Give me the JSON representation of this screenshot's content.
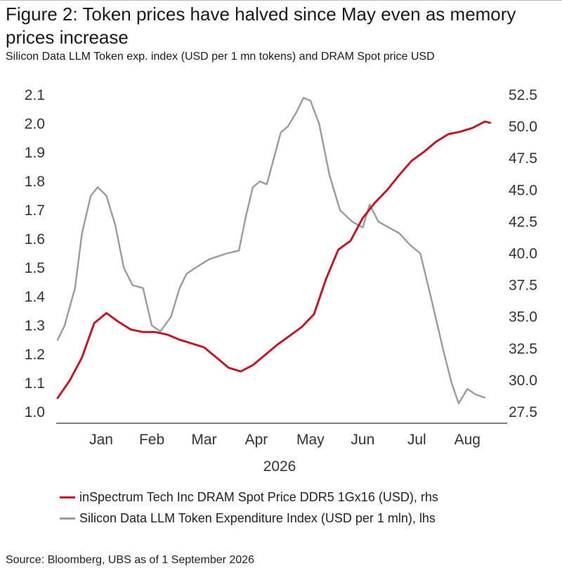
{
  "title": "Figure 2: Token prices have halved since May even as memory prices increase",
  "subtitle": "Silicon Data LLM Token exp. index (USD per 1 mn tokens) and DRAM Spot price USD",
  "source": "Source: Bloomberg, UBS as of 1 September 2026",
  "chart_data": {
    "type": "line",
    "xlabel": "2026",
    "x_ticks": [
      "Jan",
      "Feb",
      "Mar",
      "Apr",
      "May",
      "Jun",
      "Jul",
      "Aug"
    ],
    "y_left": {
      "ylim": [
        1.0,
        2.1
      ],
      "ticks": [
        "1.0",
        "1.1",
        "1.2",
        "1.3",
        "1.4",
        "1.5",
        "1.6",
        "1.7",
        "1.8",
        "1.9",
        "2.0",
        "2.1"
      ]
    },
    "y_right": {
      "ylim": [
        27.5,
        52.5
      ],
      "ticks": [
        "27.5",
        "30.0",
        "32.5",
        "35.0",
        "37.5",
        "40.0",
        "42.5",
        "45.0",
        "47.5",
        "50.0",
        "52.5"
      ]
    },
    "legend_position": "bottom",
    "grid": false,
    "series": [
      {
        "name": "inSpectrum Tech Inc DRAM Spot Price DDR5 1Gx16 (USD), rhs",
        "axis": "right",
        "color": "#b71c2c",
        "points": [
          [
            "2025-12-22",
            28.6
          ],
          [
            "2025-12-29",
            30.0
          ],
          [
            "2026-01-05",
            31.8
          ],
          [
            "2026-01-12",
            34.5
          ],
          [
            "2026-01-19",
            35.3
          ],
          [
            "2026-01-26",
            34.6
          ],
          [
            "2026-02-02",
            34.0
          ],
          [
            "2026-02-09",
            33.8
          ],
          [
            "2026-02-16",
            33.8
          ],
          [
            "2026-02-23",
            33.6
          ],
          [
            "2026-03-02",
            33.2
          ],
          [
            "2026-03-09",
            32.9
          ],
          [
            "2026-03-16",
            32.6
          ],
          [
            "2026-03-23",
            31.8
          ],
          [
            "2026-03-30",
            31.0
          ],
          [
            "2026-04-06",
            30.7
          ],
          [
            "2026-04-13",
            31.2
          ],
          [
            "2026-04-20",
            32.0
          ],
          [
            "2026-04-27",
            32.8
          ],
          [
            "2026-05-04",
            33.5
          ],
          [
            "2026-05-11",
            34.2
          ],
          [
            "2026-05-18",
            35.2
          ],
          [
            "2026-05-25",
            38.0
          ],
          [
            "2026-06-01",
            40.3
          ],
          [
            "2026-06-08",
            41.0
          ],
          [
            "2026-06-15",
            42.8
          ],
          [
            "2026-06-22",
            44.0
          ],
          [
            "2026-06-29",
            45.0
          ],
          [
            "2026-07-06",
            46.2
          ],
          [
            "2026-07-13",
            47.3
          ],
          [
            "2026-07-20",
            48.0
          ],
          [
            "2026-07-27",
            48.8
          ],
          [
            "2026-08-03",
            49.4
          ],
          [
            "2026-08-10",
            49.6
          ],
          [
            "2026-08-17",
            49.9
          ],
          [
            "2026-08-24",
            50.4
          ],
          [
            "2026-08-27",
            50.3
          ]
        ]
      },
      {
        "name": "Silicon Data LLM Token Expenditure Index (USD per 1 mln), lhs",
        "axis": "left",
        "color": "#9a9a9a",
        "points": [
          [
            "2025-12-22",
            1.25
          ],
          [
            "2025-12-26",
            1.3
          ],
          [
            "2026-01-01",
            1.43
          ],
          [
            "2026-01-05",
            1.62
          ],
          [
            "2026-01-10",
            1.75
          ],
          [
            "2026-01-14",
            1.78
          ],
          [
            "2026-01-19",
            1.75
          ],
          [
            "2026-01-24",
            1.65
          ],
          [
            "2026-01-29",
            1.5
          ],
          [
            "2026-02-03",
            1.44
          ],
          [
            "2026-02-09",
            1.43
          ],
          [
            "2026-02-14",
            1.3
          ],
          [
            "2026-02-19",
            1.28
          ],
          [
            "2026-02-25",
            1.33
          ],
          [
            "2026-03-02",
            1.43
          ],
          [
            "2026-03-06",
            1.48
          ],
          [
            "2026-03-11",
            1.5
          ],
          [
            "2026-03-19",
            1.53
          ],
          [
            "2026-03-29",
            1.55
          ],
          [
            "2026-04-05",
            1.56
          ],
          [
            "2026-04-09",
            1.68
          ],
          [
            "2026-04-13",
            1.78
          ],
          [
            "2026-04-17",
            1.8
          ],
          [
            "2026-04-21",
            1.79
          ],
          [
            "2026-04-25",
            1.88
          ],
          [
            "2026-04-29",
            1.97
          ],
          [
            "2026-05-03",
            1.99
          ],
          [
            "2026-05-08",
            2.04
          ],
          [
            "2026-05-12",
            2.09
          ],
          [
            "2026-05-16",
            2.08
          ],
          [
            "2026-05-21",
            2.0
          ],
          [
            "2026-05-27",
            1.82
          ],
          [
            "2026-06-02",
            1.7
          ],
          [
            "2026-06-09",
            1.66
          ],
          [
            "2026-06-15",
            1.64
          ],
          [
            "2026-06-19",
            1.72
          ],
          [
            "2026-06-24",
            1.66
          ],
          [
            "2026-06-30",
            1.64
          ],
          [
            "2026-07-06",
            1.62
          ],
          [
            "2026-07-12",
            1.58
          ],
          [
            "2026-07-18",
            1.55
          ],
          [
            "2026-07-24",
            1.4
          ],
          [
            "2026-07-31",
            1.22
          ],
          [
            "2026-08-05",
            1.1
          ],
          [
            "2026-08-09",
            1.03
          ],
          [
            "2026-08-14",
            1.08
          ],
          [
            "2026-08-19",
            1.06
          ],
          [
            "2026-08-24",
            1.05
          ]
        ]
      }
    ]
  }
}
